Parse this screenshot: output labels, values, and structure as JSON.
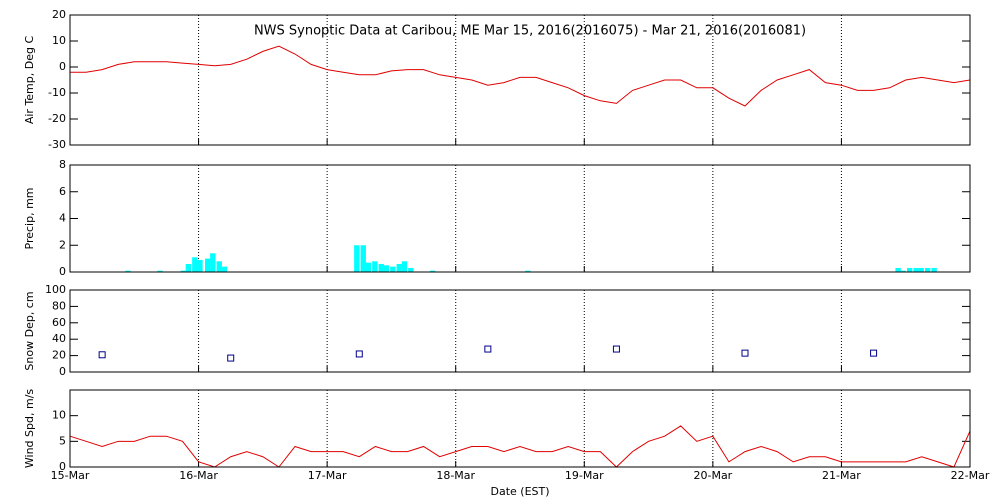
{
  "chart_data": [
    {
      "type": "line",
      "title": "NWS Synoptic Data at Caribou, ME   Mar 15, 2016(2016075) - Mar 21, 2016(2016081)",
      "ylabel": "Air Temp, Deg C",
      "color": "#e00000",
      "x": [
        0,
        0.125,
        0.25,
        0.375,
        0.5,
        0.625,
        0.75,
        0.875,
        1,
        1.125,
        1.25,
        1.375,
        1.5,
        1.625,
        1.75,
        1.875,
        2,
        2.125,
        2.25,
        2.375,
        2.5,
        2.625,
        2.75,
        2.875,
        3,
        3.125,
        3.25,
        3.375,
        3.5,
        3.625,
        3.75,
        3.875,
        4,
        4.125,
        4.25,
        4.375,
        4.5,
        4.625,
        4.75,
        4.875,
        5,
        5.125,
        5.25,
        5.375,
        5.5,
        5.625,
        5.75,
        5.875,
        6,
        6.125,
        6.25,
        6.375,
        6.5,
        6.625,
        6.75,
        6.875,
        7
      ],
      "values": [
        -2,
        -2,
        -1,
        1,
        2,
        2,
        2,
        1.5,
        1,
        0.5,
        1,
        3,
        6,
        8,
        5,
        1,
        -1,
        -2,
        -3,
        -3,
        -1.5,
        -1,
        -1,
        -3,
        -4,
        -5,
        -7,
        -6,
        -4,
        -4,
        -6,
        -8,
        -11,
        -13,
        -14,
        -9,
        -7,
        -5,
        -5,
        -8,
        -8,
        -12,
        -15,
        -9,
        -5,
        -3,
        -1,
        -6,
        -7,
        -9,
        -9,
        -8,
        -5,
        -4,
        -5,
        -6,
        -5
      ],
      "ylim": [
        -30,
        20
      ],
      "yticks": [
        -30,
        -20,
        -10,
        0,
        10,
        20
      ]
    },
    {
      "type": "bar",
      "ylabel": "Precip, mm",
      "color": "#00ffff",
      "x": [
        0.43,
        0.68,
        0.86,
        0.9,
        0.95,
        0.99,
        1.05,
        1.09,
        1.14,
        1.18,
        2.21,
        2.26,
        2.3,
        2.35,
        2.4,
        2.44,
        2.49,
        2.54,
        2.58,
        2.63,
        2.8,
        3.54,
        6.42,
        6.46,
        6.51,
        6.56,
        6.6,
        6.65,
        6.7
      ],
      "values": [
        0.1,
        0.1,
        0.1,
        0.6,
        1.1,
        0.9,
        1.0,
        1.4,
        0.8,
        0.4,
        2.0,
        2.0,
        0.7,
        0.8,
        0.6,
        0.5,
        0.4,
        0.6,
        0.8,
        0.3,
        0.1,
        0.1,
        0.3,
        0.1,
        0.3,
        0.3,
        0.3,
        0.3,
        0.3
      ],
      "ylim": [
        0,
        8
      ],
      "yticks": [
        0,
        2,
        4,
        6,
        8
      ]
    },
    {
      "type": "scatter",
      "ylabel": "Snow Dep, cm",
      "color": "#00008b",
      "x": [
        0.25,
        1.25,
        2.25,
        3.25,
        4.25,
        5.25,
        6.25
      ],
      "values": [
        21,
        17,
        22,
        28,
        28,
        23,
        23
      ],
      "ylim": [
        0,
        100
      ],
      "yticks": [
        0,
        20,
        40,
        60,
        80,
        100
      ]
    },
    {
      "type": "line",
      "ylabel": "Wind Spd, m/s",
      "xlabel": "Date (EST)",
      "color": "#e00000",
      "x": [
        0,
        0.125,
        0.25,
        0.375,
        0.5,
        0.625,
        0.75,
        0.875,
        1,
        1.125,
        1.25,
        1.375,
        1.5,
        1.625,
        1.75,
        1.875,
        2,
        2.125,
        2.25,
        2.375,
        2.5,
        2.625,
        2.75,
        2.875,
        3,
        3.125,
        3.25,
        3.375,
        3.5,
        3.625,
        3.75,
        3.875,
        4,
        4.125,
        4.25,
        4.375,
        4.5,
        4.625,
        4.75,
        4.875,
        5,
        5.125,
        5.25,
        5.375,
        5.5,
        5.625,
        5.75,
        5.875,
        6,
        6.125,
        6.25,
        6.375,
        6.5,
        6.625,
        6.75,
        6.875,
        7
      ],
      "values": [
        6,
        5,
        4,
        5,
        5,
        6,
        6,
        5,
        1,
        0,
        2,
        3,
        2,
        0,
        4,
        3,
        3,
        3,
        2,
        4,
        3,
        3,
        4,
        2,
        3,
        4,
        4,
        3,
        4,
        3,
        3,
        4,
        3,
        3,
        0,
        3,
        5,
        6,
        8,
        5,
        6,
        1,
        3,
        4,
        3,
        1,
        2,
        2,
        1,
        1,
        1,
        1,
        1,
        2,
        1,
        0,
        7
      ],
      "ylim": [
        0,
        15
      ],
      "yticks": [
        0,
        5,
        10
      ],
      "xlim": [
        0,
        7
      ],
      "xticks": [
        {
          "value": 0,
          "label": "15-Mar"
        },
        {
          "value": 1,
          "label": "16-Mar"
        },
        {
          "value": 2,
          "label": "17-Mar"
        },
        {
          "value": 3,
          "label": "18-Mar"
        },
        {
          "value": 4,
          "label": "19-Mar"
        },
        {
          "value": 5,
          "label": "20-Mar"
        },
        {
          "value": 6,
          "label": "21-Mar"
        },
        {
          "value": 7,
          "label": "22-Mar"
        }
      ]
    }
  ]
}
